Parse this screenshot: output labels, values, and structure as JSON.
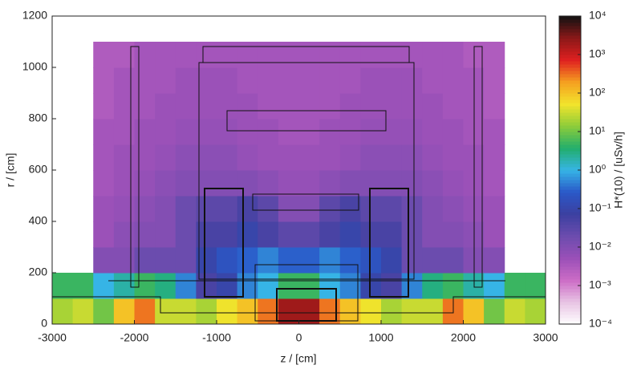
{
  "chart_data": {
    "type": "heatmap",
    "xlabel": "z / [cm]",
    "ylabel": "r / [cm]",
    "colorbar_label": "H*(10) / [uSv/h]",
    "xlim": [
      -3000,
      3000
    ],
    "xticks": [
      -3000,
      -2000,
      -1000,
      0,
      1000,
      2000,
      3000
    ],
    "ylim": [
      0,
      1200
    ],
    "yticks": [
      0,
      200,
      400,
      600,
      800,
      1000,
      1200
    ],
    "xbins": [
      -3000,
      -2750,
      -2500,
      -2250,
      -2000,
      -1750,
      -1500,
      -1250,
      -1000,
      -750,
      -500,
      -250,
      0,
      250,
      500,
      750,
      1000,
      1250,
      1500,
      1750,
      2000,
      2250,
      2500,
      2750,
      3000
    ],
    "ybins": [
      0,
      100,
      200,
      300,
      400,
      500,
      600,
      700,
      800,
      900,
      1000,
      1100
    ],
    "values": [
      [
        20,
        30,
        10,
        100,
        300,
        30,
        30,
        20,
        50,
        100,
        300,
        2000,
        2000,
        300,
        100,
        50,
        20,
        30,
        30,
        300,
        100,
        10,
        30,
        20
      ],
      [
        5,
        5,
        1,
        2,
        5,
        3,
        0.5,
        0.05,
        0.1,
        0.5,
        1,
        5,
        5,
        1,
        0.5,
        0.1,
        0.05,
        0.5,
        3,
        5,
        2,
        1,
        5,
        5
      ],
      [
        null,
        null,
        0.01,
        0.01,
        0.02,
        0.02,
        0.02,
        0.1,
        0.2,
        0.3,
        0.5,
        0.3,
        0.3,
        0.5,
        0.3,
        0.2,
        0.1,
        0.02,
        0.02,
        0.02,
        0.01,
        0.01,
        null,
        null
      ],
      [
        null,
        null,
        0.005,
        0.008,
        0.01,
        0.01,
        0.02,
        0.05,
        0.05,
        0.1,
        0.05,
        0.03,
        0.03,
        0.05,
        0.1,
        0.05,
        0.05,
        0.02,
        0.01,
        0.01,
        0.008,
        0.005,
        null,
        null
      ],
      [
        null,
        null,
        0.005,
        0.006,
        0.008,
        0.01,
        0.02,
        0.03,
        0.03,
        0.05,
        0.03,
        0.01,
        0.01,
        0.03,
        0.05,
        0.03,
        0.03,
        0.02,
        0.01,
        0.008,
        0.006,
        0.005,
        null,
        null
      ],
      [
        null,
        null,
        0.004,
        0.005,
        0.006,
        0.008,
        0.01,
        0.01,
        0.01,
        0.01,
        0.008,
        0.006,
        0.006,
        0.008,
        0.01,
        0.01,
        0.01,
        0.01,
        0.008,
        0.006,
        0.005,
        0.004,
        null,
        null
      ],
      [
        null,
        null,
        0.004,
        0.005,
        0.005,
        0.006,
        0.008,
        0.008,
        0.008,
        0.006,
        0.005,
        0.005,
        0.005,
        0.005,
        0.006,
        0.008,
        0.008,
        0.008,
        0.006,
        0.005,
        0.005,
        0.004,
        null,
        null
      ],
      [
        null,
        null,
        0.004,
        0.004,
        0.005,
        0.005,
        0.006,
        0.006,
        0.006,
        0.005,
        0.005,
        0.004,
        0.004,
        0.005,
        0.005,
        0.006,
        0.006,
        0.006,
        0.005,
        0.005,
        0.004,
        0.004,
        null,
        null
      ],
      [
        null,
        null,
        0.003,
        0.004,
        0.004,
        0.005,
        0.005,
        0.005,
        0.005,
        0.005,
        0.004,
        0.004,
        0.004,
        0.004,
        0.005,
        0.005,
        0.005,
        0.005,
        0.005,
        0.004,
        0.004,
        0.003,
        null,
        null
      ],
      [
        null,
        null,
        0.003,
        0.004,
        0.004,
        0.004,
        0.005,
        0.005,
        0.005,
        0.004,
        0.004,
        0.004,
        0.004,
        0.004,
        0.004,
        0.005,
        0.005,
        0.005,
        0.004,
        0.004,
        0.004,
        0.003,
        null,
        null
      ],
      [
        null,
        null,
        0.003,
        0.003,
        0.004,
        0.004,
        0.004,
        0.004,
        0.004,
        0.004,
        0.004,
        0.004,
        0.004,
        0.004,
        0.004,
        0.004,
        0.004,
        0.004,
        0.004,
        0.004,
        0.003,
        0.003,
        null,
        null
      ]
    ],
    "colorbar": {
      "log": true,
      "lim": [
        0.0001,
        10000
      ],
      "ticks": [
        {
          "value": 10000,
          "label": "10⁴"
        },
        {
          "value": 1000,
          "label": "10³"
        },
        {
          "value": 100,
          "label": "10²"
        },
        {
          "value": 10,
          "label": "10¹"
        },
        {
          "value": 1,
          "label": "10⁰"
        },
        {
          "value": 0.1,
          "label": "10⁻¹"
        },
        {
          "value": 0.01,
          "label": "10⁻²"
        },
        {
          "value": 0.001,
          "label": "10⁻³"
        },
        {
          "value": 0.0001,
          "label": "10⁻⁴"
        }
      ],
      "colormap": [
        "#ffffff",
        "#e8c4e4",
        "#cc6cc6",
        "#9a50b8",
        "#6c4cae",
        "#3c40a0",
        "#2a58c8",
        "#36b4e6",
        "#22ae6c",
        "#8ccc3a",
        "#f2e42c",
        "#f5a020",
        "#e02020",
        "#8c1818",
        "#111111"
      ]
    }
  }
}
